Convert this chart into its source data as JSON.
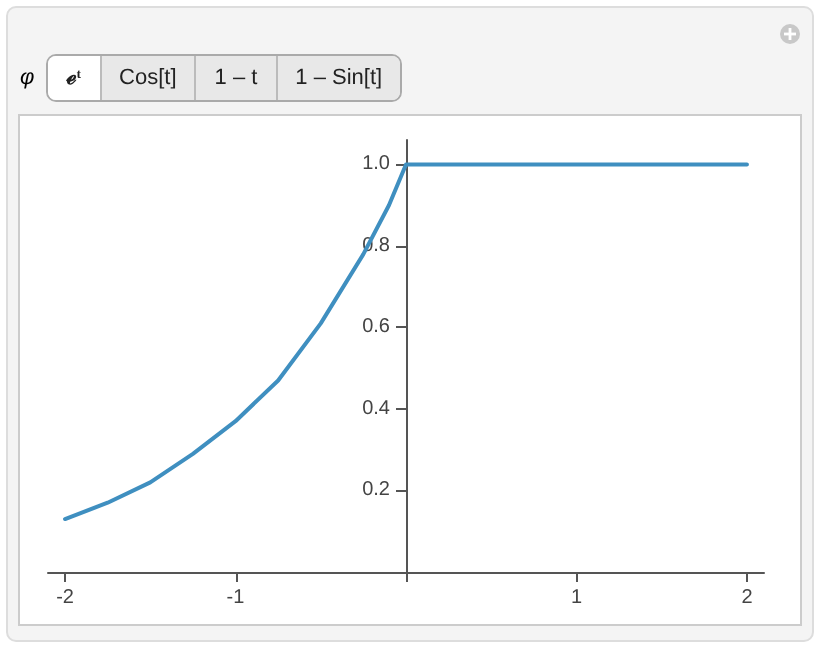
{
  "chart_data": {
    "type": "line",
    "annotations": [
      "φ",
      "ℯᵗ",
      "Cos[t]",
      "1 – t",
      "1 – Sin[t]"
    ],
    "x": [
      -2,
      -1.75,
      -1.5,
      -1.25,
      -1,
      -0.75,
      -0.5,
      -0.25,
      -0.1,
      0,
      2
    ],
    "series": [
      {
        "color": "#3f8fc0",
        "values": [
          0.13,
          0.17,
          0.22,
          0.29,
          0.37,
          0.47,
          0.61,
          0.78,
          0.9,
          1,
          1
        ]
      }
    ],
    "xlim": [
      -2.1,
      2.1
    ],
    "ylim": [
      0,
      1.06
    ],
    "xticks": [
      -2,
      -1,
      {
        "value": 0,
        "label": null
      },
      1,
      2
    ],
    "yticks": [
      0.2,
      0.4,
      0.6,
      0.8,
      {
        "value": 1,
        "label": "1.0"
      }
    ],
    "marker": "none",
    "line_style": "solid"
  }
}
